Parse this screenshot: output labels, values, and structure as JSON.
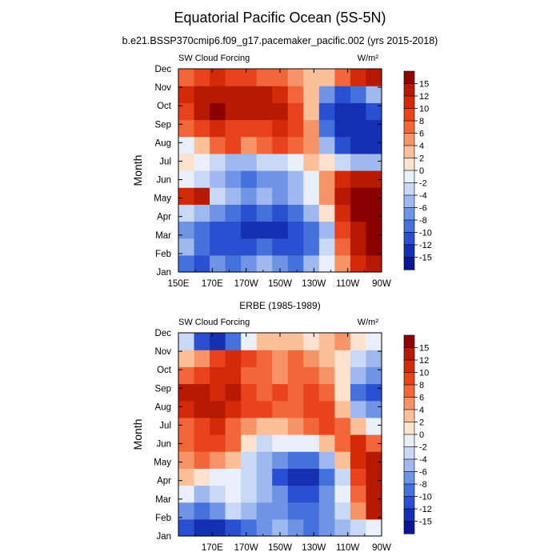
{
  "figure": {
    "title": "Equatorial Pacific Ocean (5S-5N)",
    "subtitle": "b.e21.BSSP370cmip6.f09_g17.pacemaker_pacific.002 (yrs 2015-2018)"
  },
  "colorbar": {
    "labels": [
      "15",
      "12",
      "10",
      "8",
      "6",
      "4",
      "2",
      "0",
      "-2",
      "-4",
      "-6",
      "-8",
      "-10",
      "-12",
      "-15"
    ],
    "colors": [
      "#8b0000",
      "#b61a02",
      "#d32a0a",
      "#e8431c",
      "#f2673a",
      "#f79467",
      "#fbbf9a",
      "#fde3cf",
      "#e9f0fb",
      "#c8d8f5",
      "#9fb9ee",
      "#6f94e6",
      "#4571dc",
      "#2a4fd0",
      "#1530b2",
      "#0a1890"
    ]
  },
  "chart_data": [
    {
      "type": "heatmap",
      "title": "",
      "left_label": "SW Cloud Forcing",
      "right_label": "W/m²",
      "ylabel": "Month",
      "xlabel": "",
      "x_tick_labels": [
        "150E",
        "170E",
        "170W",
        "150W",
        "130W",
        "110W",
        "90W"
      ],
      "y_tick_labels": [
        "Jan",
        "Feb",
        "Mar",
        "Apr",
        "May",
        "Jun",
        "Jul",
        "Aug",
        "Sep",
        "Oct",
        "Nov",
        "Dec"
      ],
      "x_columns": [
        "150E",
        "160E",
        "170E",
        "180",
        "170W",
        "160W",
        "150W",
        "140W",
        "130W",
        "120W",
        "110W",
        "100W",
        "90W"
      ],
      "y_rows": [
        "Jan",
        "Feb",
        "Mar",
        "Apr",
        "May",
        "Jun",
        "Jul",
        "Aug",
        "Sep",
        "Oct",
        "Nov",
        "Dec"
      ],
      "values": [
        [
          -10,
          -12,
          -8,
          -10,
          -8,
          -6,
          -8,
          -10,
          -6,
          -2,
          4,
          10,
          12
        ],
        [
          -6,
          -10,
          -12,
          -12,
          -12,
          -10,
          -12,
          -12,
          -10,
          -4,
          6,
          12,
          15
        ],
        [
          -8,
          -10,
          -12,
          -12,
          -15,
          -14,
          -14,
          -12,
          -10,
          -6,
          8,
          14,
          16
        ],
        [
          -4,
          -6,
          -8,
          -10,
          -12,
          -10,
          -12,
          -10,
          -6,
          0,
          10,
          15,
          16
        ],
        [
          10,
          12,
          -4,
          -6,
          -8,
          -6,
          -8,
          -6,
          -2,
          4,
          12,
          15,
          16
        ],
        [
          -2,
          -4,
          -6,
          -8,
          -10,
          -8,
          -8,
          -6,
          -2,
          4,
          10,
          12,
          12
        ],
        [
          0,
          -2,
          -4,
          -6,
          -6,
          -4,
          -4,
          -2,
          2,
          0,
          -4,
          -6,
          -6
        ],
        [
          -2,
          2,
          6,
          8,
          4,
          6,
          8,
          6,
          4,
          -6,
          -12,
          -15,
          -15
        ],
        [
          6,
          8,
          10,
          8,
          8,
          8,
          10,
          8,
          4,
          -10,
          -15,
          -15,
          -15
        ],
        [
          8,
          14,
          16,
          14,
          12,
          14,
          12,
          8,
          2,
          -12,
          -15,
          -15,
          -12
        ],
        [
          10,
          12,
          14,
          14,
          12,
          12,
          10,
          6,
          2,
          -8,
          -12,
          -10,
          -6
        ],
        [
          6,
          8,
          10,
          8,
          8,
          6,
          6,
          4,
          2,
          2,
          6,
          10,
          12
        ]
      ]
    },
    {
      "type": "heatmap",
      "title": "ERBE (1985-1989)",
      "left_label": "SW Cloud Forcing",
      "right_label": "W/m²",
      "ylabel": "Month",
      "xlabel": "",
      "x_tick_labels": [
        "170E",
        "170W",
        "150W",
        "130W",
        "110W",
        "90W"
      ],
      "y_tick_labels": [
        "Jan",
        "Feb",
        "Mar",
        "Apr",
        "May",
        "Jun",
        "Jul",
        "Aug",
        "Sep",
        "Oct",
        "Nov",
        "Dec"
      ],
      "x_columns": [
        "150E",
        "160E",
        "170E",
        "180",
        "170W",
        "160W",
        "150W",
        "140W",
        "130W",
        "120W",
        "110W",
        "100W",
        "90W"
      ],
      "y_rows": [
        "Jan",
        "Feb",
        "Mar",
        "Apr",
        "May",
        "Jun",
        "Jul",
        "Aug",
        "Sep",
        "Oct",
        "Nov",
        "Dec"
      ],
      "values": [
        [
          -12,
          -15,
          -14,
          -12,
          -10,
          -8,
          -6,
          -8,
          -10,
          -8,
          -6,
          -4,
          -2
        ],
        [
          -8,
          -10,
          -8,
          -4,
          -6,
          -8,
          -8,
          -10,
          -10,
          -8,
          -4,
          4,
          12
        ],
        [
          -2,
          -6,
          -4,
          -2,
          -4,
          -6,
          -8,
          -12,
          -12,
          -8,
          -2,
          6,
          14
        ],
        [
          2,
          0,
          -2,
          -2,
          -4,
          -6,
          -12,
          -14,
          -14,
          -10,
          -4,
          8,
          12
        ],
        [
          4,
          6,
          4,
          2,
          -4,
          -6,
          -8,
          -10,
          -10,
          -6,
          2,
          10,
          14
        ],
        [
          6,
          8,
          8,
          6,
          0,
          -4,
          -2,
          -2,
          -2,
          2,
          6,
          10,
          6
        ],
        [
          6,
          8,
          10,
          6,
          4,
          2,
          2,
          4,
          6,
          8,
          6,
          2,
          -2
        ],
        [
          10,
          14,
          12,
          10,
          8,
          8,
          6,
          6,
          8,
          8,
          2,
          -6,
          -8
        ],
        [
          12,
          12,
          10,
          12,
          8,
          6,
          8,
          6,
          8,
          6,
          0,
          -10,
          -12
        ],
        [
          6,
          8,
          10,
          10,
          6,
          6,
          4,
          6,
          6,
          4,
          0,
          -6,
          -8
        ],
        [
          2,
          4,
          8,
          10,
          8,
          6,
          4,
          6,
          4,
          2,
          0,
          -4,
          -6
        ],
        [
          -4,
          -12,
          -14,
          -10,
          -2,
          2,
          2,
          2,
          0,
          2,
          4,
          0,
          -2
        ]
      ]
    }
  ]
}
